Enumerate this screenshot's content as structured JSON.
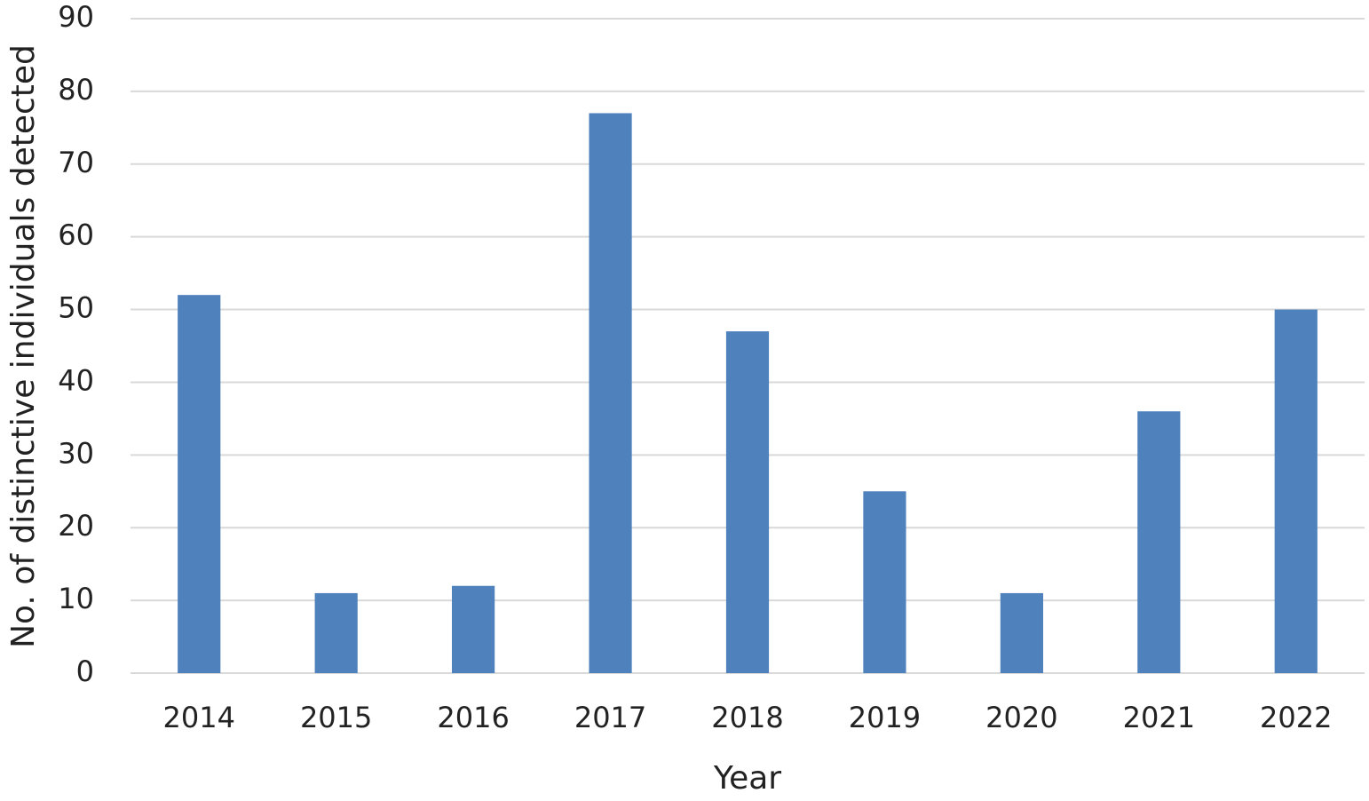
{
  "chart_data": {
    "type": "bar",
    "x_label": "Year",
    "y_label": "No. of distinctive individuals detected",
    "categories": [
      "2014",
      "2015",
      "2016",
      "2017",
      "2018",
      "2019",
      "2020",
      "2021",
      "2022"
    ],
    "values": [
      52,
      11,
      12,
      77,
      47,
      25,
      11,
      36,
      50
    ],
    "color": "#4f81bd",
    "ylim": [
      0,
      90
    ],
    "yticks": [
      0,
      10,
      20,
      30,
      40,
      50,
      60,
      70,
      80,
      90
    ],
    "grid": true
  }
}
